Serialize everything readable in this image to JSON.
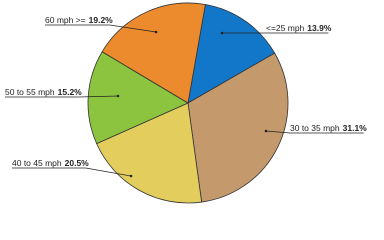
{
  "chart_data": {
    "type": "pie",
    "categories": [
      "<=25 mph",
      "30 to 35 mph",
      "40 to 45 mph",
      "50 to 55 mph",
      "60 mph >="
    ],
    "values": [
      13.9,
      31.1,
      20.5,
      15.2,
      19.2
    ],
    "value_labels": [
      "13.9%",
      "31.1%",
      "20.5%",
      "15.2%",
      "19.2%"
    ],
    "colors": [
      "#1277c9",
      "#c49a6c",
      "#e3cd5c",
      "#8cc43f",
      "#ec8a2e"
    ]
  }
}
